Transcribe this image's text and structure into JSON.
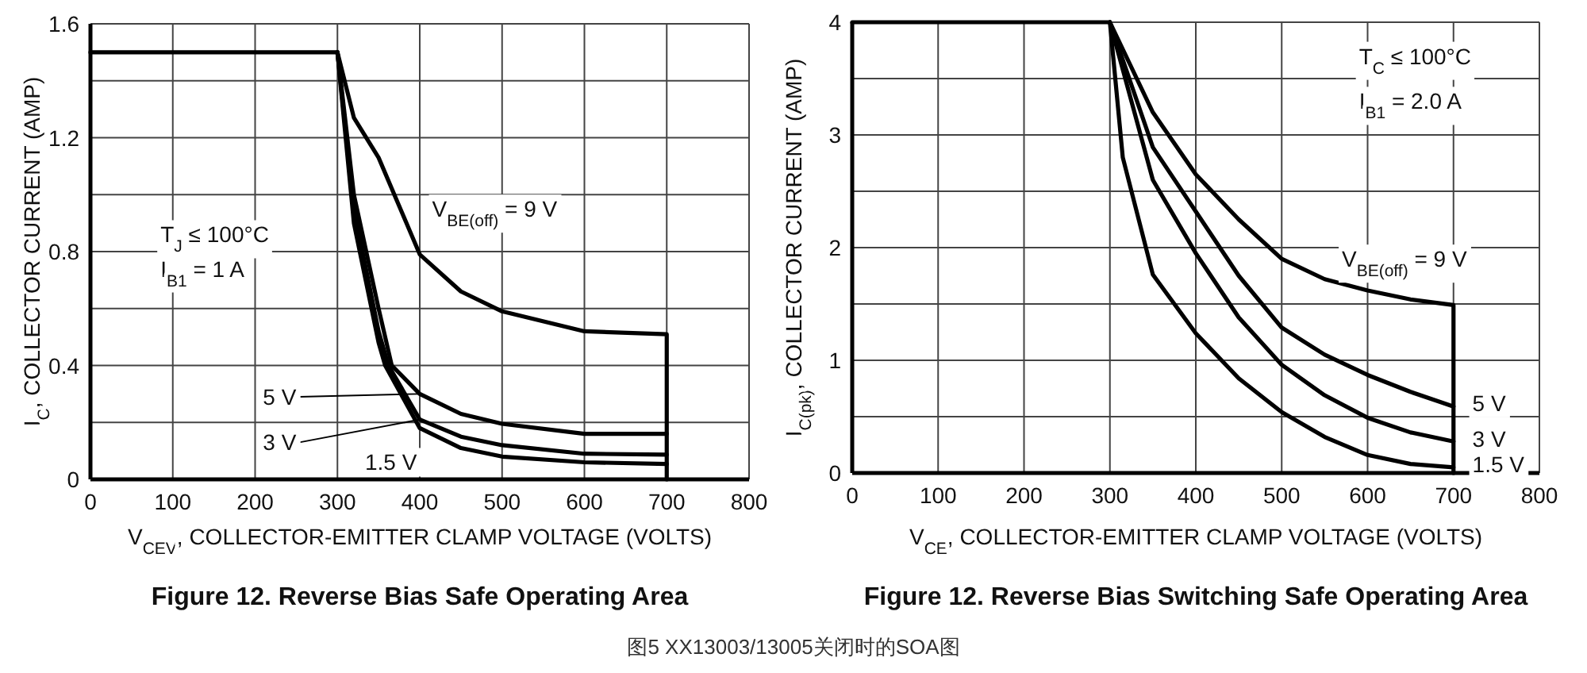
{
  "chart_data": [
    {
      "type": "line",
      "title": "Figure 12. Reverse Bias Safe Operating Area",
      "xlabel": "V$_{CEV}$, COLLECTOR-EMITTER CLAMP VOLTAGE (VOLTS)",
      "ylabel": "I$_{C}$, COLLECTOR CURRENT (AMP)",
      "xlim": [
        0,
        800
      ],
      "ylim": [
        0,
        1.6
      ],
      "xticks": [
        0,
        100,
        200,
        300,
        400,
        500,
        600,
        700,
        800
      ],
      "yticks": [
        0,
        {
          "value": 0.2,
          "label": null
        },
        0.4,
        {
          "value": 0.6,
          "label": null
        },
        0.8,
        {
          "value": 1.0,
          "label": null
        },
        1.2,
        {
          "value": 1.4,
          "label": null
        },
        1.6
      ],
      "grid": true,
      "marker": "none",
      "line_style": "solid",
      "annotations": [
        "T$_{J}$ ≤ 100°C",
        "I$_{B1}$ = 1 A"
      ],
      "series": [
        {
          "name": "V$_{BE(off)}$ = 9 V",
          "color": "#000000",
          "x": [
            0,
            300,
            320,
            350,
            400,
            450,
            500,
            600,
            700,
            700
          ],
          "values": [
            1.5,
            1.5,
            1.27,
            1.13,
            0.79,
            0.66,
            0.59,
            0.52,
            0.51,
            0
          ]
        },
        {
          "name": "5 V",
          "color": "#000000",
          "x": [
            300,
            320,
            350,
            366,
            400,
            450,
            500,
            600,
            700
          ],
          "values": [
            1.5,
            1.0,
            0.6,
            0.4,
            0.3,
            0.23,
            0.195,
            0.16,
            0.16
          ]
        },
        {
          "name": "3 V",
          "color": "#000000",
          "x": [
            300,
            320,
            350,
            362,
            400,
            450,
            500,
            600,
            700
          ],
          "values": [
            1.5,
            0.95,
            0.52,
            0.4,
            0.21,
            0.15,
            0.12,
            0.09,
            0.087
          ]
        },
        {
          "name": "1.5 V",
          "color": "#000000",
          "x": [
            300,
            320,
            350,
            358,
            400,
            450,
            500,
            600,
            700
          ],
          "values": [
            1.5,
            0.9,
            0.48,
            0.4,
            0.18,
            0.11,
            0.08,
            0.06,
            0.054
          ]
        }
      ]
    },
    {
      "type": "line",
      "title": "Figure 12. Reverse Bias Switching Safe Operating Area",
      "xlabel": "V$_{CE}$, COLLECTOR-EMITTER CLAMP VOLTAGE (VOLTS)",
      "ylabel": "I$_{C(pk)}$, COLLECTOR CURRENT (AMP)",
      "xlim": [
        0,
        800
      ],
      "ylim": [
        0,
        4
      ],
      "xticks": [
        0,
        100,
        200,
        300,
        400,
        500,
        600,
        700,
        800
      ],
      "yticks": [
        0,
        {
          "value": 0.5,
          "label": null
        },
        1,
        {
          "value": 1.5,
          "label": null
        },
        2,
        {
          "value": 2.5,
          "label": null
        },
        3,
        {
          "value": 3.5,
          "label": null
        },
        4
      ],
      "grid": true,
      "marker": "none",
      "line_style": "solid",
      "annotations": [
        "T$_{C}$ ≤ 100°C",
        "I$_{B1}$ = 2.0 A",
        "图5 XX13003/13005关闭时的SOA图"
      ],
      "series": [
        {
          "name": "V$_{BE(off)}$ = 9 V",
          "color": "#000000",
          "x": [
            0,
            300,
            350,
            400,
            450,
            500,
            550,
            600,
            650,
            700,
            700
          ],
          "values": [
            4,
            4,
            3.2,
            2.65,
            2.25,
            1.9,
            1.72,
            1.62,
            1.54,
            1.49,
            0
          ]
        },
        {
          "name": "5 V",
          "color": "#000000",
          "x": [
            300,
            350,
            400,
            450,
            500,
            550,
            600,
            650,
            700
          ],
          "values": [
            4,
            2.89,
            2.32,
            1.75,
            1.29,
            1.05,
            0.87,
            0.72,
            0.59
          ]
        },
        {
          "name": "3 V",
          "color": "#000000",
          "x": [
            300,
            350,
            400,
            450,
            500,
            550,
            600,
            650,
            700
          ],
          "values": [
            4,
            2.6,
            1.95,
            1.38,
            0.96,
            0.69,
            0.49,
            0.36,
            0.28
          ]
        },
        {
          "name": "1.5 V",
          "color": "#000000",
          "x": [
            300,
            315,
            350,
            400,
            450,
            500,
            550,
            600,
            650,
            700
          ],
          "values": [
            4,
            2.8,
            1.76,
            1.24,
            0.84,
            0.54,
            0.32,
            0.16,
            0.08,
            0.05
          ]
        }
      ]
    }
  ]
}
